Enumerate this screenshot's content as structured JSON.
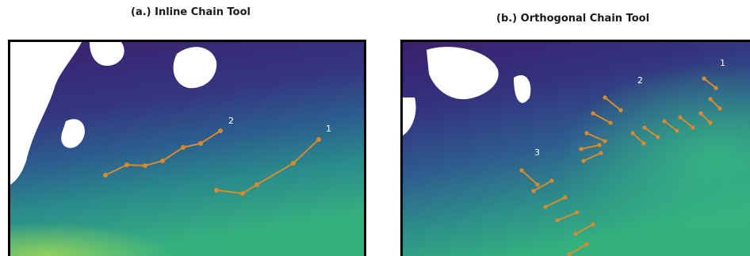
{
  "panels": {
    "inline": {
      "title": "(a.) Inline Chain Tool",
      "chain_labels": [
        "2",
        "1"
      ]
    },
    "orthogonal": {
      "title": "(b.) Orthogonal Chain Tool",
      "chain_labels": [
        "1",
        "2",
        "3"
      ]
    }
  },
  "colors": {
    "chain": "#d98a2c",
    "land": "#ffffff",
    "ocean_deep": "#3b1f6e",
    "ocean_mid": "#2c5c8f",
    "ocean_warm": "#33a58a",
    "ocean_hot": "#8fd45a"
  }
}
